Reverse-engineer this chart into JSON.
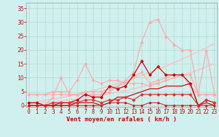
{
  "background_color": "#cff0ee",
  "grid_color": "#b0d8d0",
  "xlabel": "Vent moyen/en rafales ( km/h )",
  "xlabel_color": "#cc0000",
  "xlabel_fontsize": 6.5,
  "tick_color": "#cc0000",
  "tick_fontsize": 5.5,
  "yticks": [
    0,
    5,
    10,
    15,
    20,
    25,
    30,
    35
  ],
  "xticks": [
    0,
    1,
    2,
    3,
    4,
    5,
    6,
    7,
    8,
    9,
    10,
    11,
    12,
    13,
    14,
    15,
    16,
    17,
    18,
    19,
    20,
    21,
    22,
    23
  ],
  "xlim": [
    -0.3,
    23.3
  ],
  "ylim": [
    -0.5,
    37
  ],
  "series": [
    {
      "x": [
        0,
        1,
        2,
        3,
        4,
        5,
        6,
        7,
        8,
        9,
        10,
        11,
        12,
        13,
        14,
        15,
        16,
        17,
        18,
        19,
        20,
        21,
        22,
        23
      ],
      "y": [
        0.5,
        0.7,
        1.0,
        1.3,
        1.6,
        2.0,
        2.4,
        2.8,
        3.2,
        3.7,
        4.2,
        4.8,
        5.4,
        6.0,
        6.7,
        7.4,
        8.2,
        9.0,
        9.9,
        10.8,
        11.8,
        12.8,
        13.9,
        15.0
      ],
      "color": "#ffbbbb",
      "linewidth": 0.9,
      "marker": null,
      "markersize": 0,
      "zorder": 2
    },
    {
      "x": [
        0,
        1,
        2,
        3,
        4,
        5,
        6,
        7,
        8,
        9,
        10,
        11,
        12,
        13,
        14,
        15,
        16,
        17,
        18,
        19,
        20,
        21,
        22,
        23
      ],
      "y": [
        1.0,
        1.4,
        1.8,
        2.3,
        2.8,
        3.4,
        4.0,
        4.7,
        5.4,
        6.2,
        7.0,
        7.9,
        8.8,
        9.8,
        10.8,
        11.9,
        13.0,
        14.2,
        15.4,
        16.7,
        18.0,
        19.4,
        20.8,
        22.3
      ],
      "color": "#ffbbbb",
      "linewidth": 0.9,
      "marker": null,
      "markersize": 0,
      "zorder": 2
    },
    {
      "x": [
        0,
        1,
        2,
        3,
        4,
        5,
        6,
        7,
        8,
        9,
        10,
        11,
        12,
        13,
        14,
        15,
        16,
        17,
        18,
        19,
        20,
        21,
        22,
        23
      ],
      "y": [
        4,
        4,
        4,
        4,
        4,
        4,
        4,
        5,
        5,
        5,
        6,
        7,
        8,
        8,
        8,
        7,
        8,
        9,
        10,
        11,
        11,
        4,
        4,
        4
      ],
      "color": "#ffaaaa",
      "linewidth": 0.9,
      "marker": "o",
      "markersize": 1.8,
      "zorder": 3
    },
    {
      "x": [
        0,
        1,
        2,
        3,
        4,
        5,
        6,
        7,
        8,
        9,
        10,
        11,
        12,
        13,
        14,
        15,
        16,
        17,
        18,
        19,
        20,
        21,
        22,
        23
      ],
      "y": [
        4,
        4,
        4,
        5,
        5,
        5,
        9,
        15,
        9,
        8,
        9,
        9,
        8,
        10,
        12,
        8,
        9,
        10,
        11,
        11,
        7,
        4,
        4,
        4
      ],
      "color": "#ffaaaa",
      "linewidth": 0.9,
      "marker": "o",
      "markersize": 1.8,
      "zorder": 3
    },
    {
      "x": [
        0,
        1,
        2,
        3,
        4,
        5,
        6,
        7,
        8,
        9,
        10,
        11,
        12,
        13,
        14,
        15,
        16,
        17,
        18,
        19,
        20,
        21,
        22,
        23
      ],
      "y": [
        0,
        0,
        0,
        3,
        10,
        4,
        4,
        4,
        4,
        4,
        5,
        7,
        9,
        12,
        23,
        30,
        31,
        25,
        22,
        20,
        20,
        4,
        20,
        4
      ],
      "color": "#ffaaaa",
      "linewidth": 0.9,
      "marker": "^",
      "markersize": 2.5,
      "zorder": 3
    },
    {
      "x": [
        0,
        1,
        2,
        3,
        4,
        5,
        6,
        7,
        8,
        9,
        10,
        11,
        12,
        13,
        14,
        15,
        16,
        17,
        18,
        19,
        20,
        21,
        22,
        23
      ],
      "y": [
        0,
        0,
        0,
        0,
        0,
        0,
        0,
        0,
        0,
        0,
        1,
        1,
        1,
        0,
        0,
        1,
        1,
        0,
        0,
        0,
        0,
        0,
        0,
        0
      ],
      "color": "#cc2222",
      "linewidth": 0.8,
      "marker": "s",
      "markersize": 1.5,
      "zorder": 6
    },
    {
      "x": [
        0,
        1,
        2,
        3,
        4,
        5,
        6,
        7,
        8,
        9,
        10,
        11,
        12,
        13,
        14,
        15,
        16,
        17,
        18,
        19,
        20,
        21,
        22,
        23
      ],
      "y": [
        1,
        1,
        0,
        0,
        1,
        1,
        2,
        4,
        3,
        3,
        7,
        6,
        7,
        11,
        16,
        11,
        14,
        11,
        11,
        11,
        8,
        0,
        2,
        1
      ],
      "color": "#cc0000",
      "linewidth": 0.9,
      "marker": "D",
      "markersize": 1.8,
      "zorder": 5
    },
    {
      "x": [
        0,
        1,
        2,
        3,
        4,
        5,
        6,
        7,
        8,
        9,
        10,
        11,
        12,
        13,
        14,
        15,
        16,
        17,
        18,
        19,
        20,
        21,
        22,
        23
      ],
      "y": [
        0,
        0,
        0,
        1,
        1,
        1,
        1,
        2,
        2,
        1,
        2,
        2,
        3,
        2,
        4,
        4,
        4,
        4,
        4,
        4,
        4,
        0,
        2,
        1
      ],
      "color": "#dd3333",
      "linewidth": 0.9,
      "marker": "D",
      "markersize": 1.8,
      "zorder": 5
    },
    {
      "x": [
        0,
        1,
        2,
        3,
        4,
        5,
        6,
        7,
        8,
        9,
        10,
        11,
        12,
        13,
        14,
        15,
        16,
        17,
        18,
        19,
        20,
        21,
        22,
        23
      ],
      "y": [
        0,
        0,
        0,
        0,
        0,
        0,
        1,
        1,
        1,
        0,
        1,
        3,
        3,
        4,
        5,
        6,
        6,
        7,
        7,
        7,
        8,
        0,
        1,
        0
      ],
      "color": "#cc0000",
      "linewidth": 0.9,
      "marker": null,
      "markersize": 0,
      "zorder": 4
    }
  ]
}
